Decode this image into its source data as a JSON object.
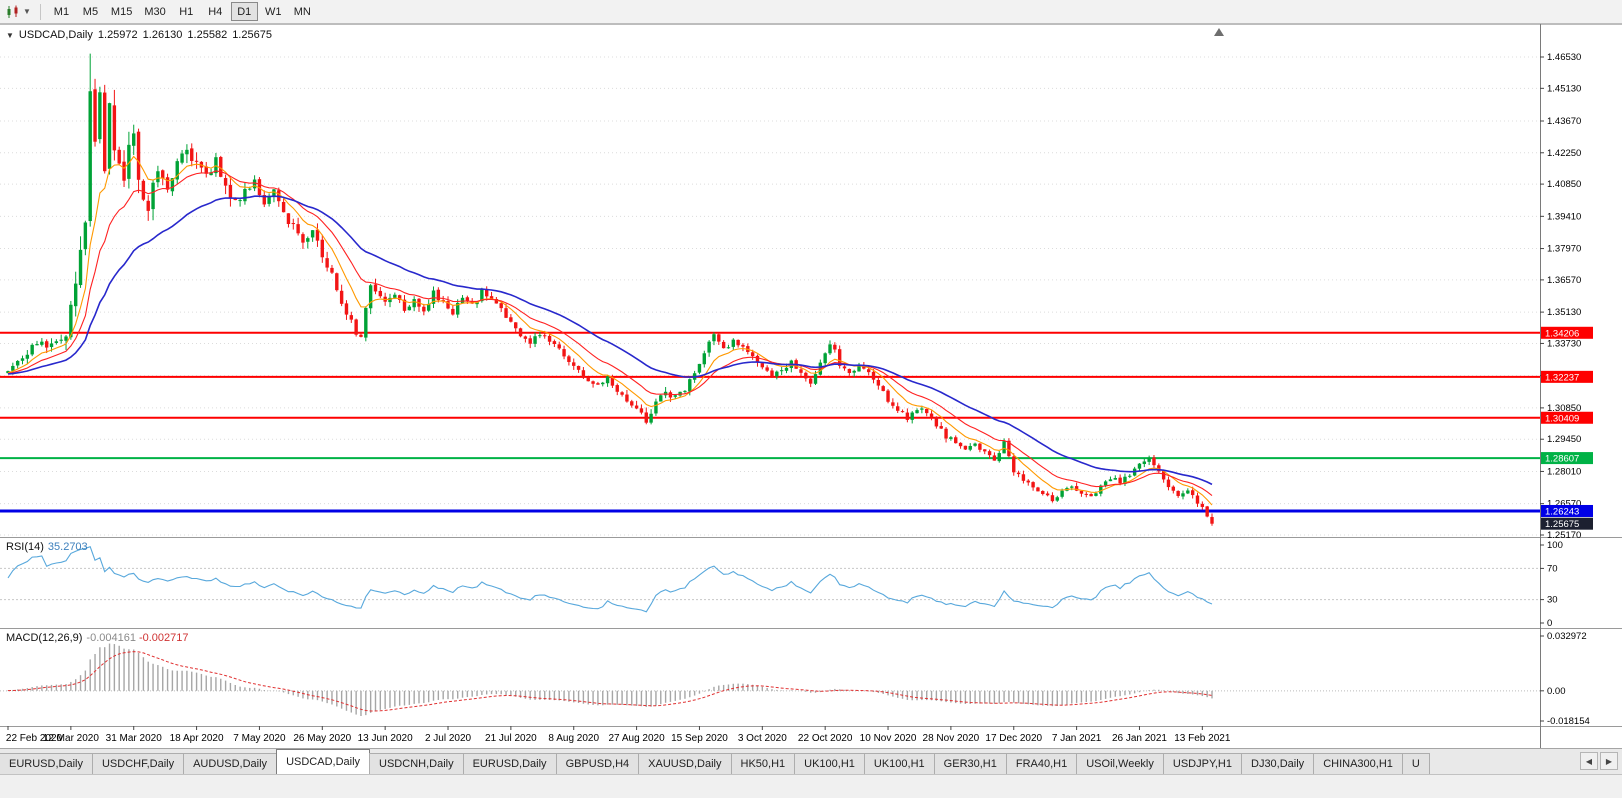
{
  "toolbar": {
    "timeframes": [
      "M1",
      "M5",
      "M15",
      "M30",
      "H1",
      "H4",
      "D1",
      "W1",
      "MN"
    ],
    "selected_timeframe": "D1"
  },
  "chart": {
    "symbol_title": "USDCAD,Daily",
    "open": "1.25972",
    "high": "1.26130",
    "low": "1.25582",
    "close": "1.25675"
  },
  "price_axis": {
    "ticks": [
      "1.46530",
      "1.45130",
      "1.43670",
      "1.42250",
      "1.40850",
      "1.39410",
      "1.37970",
      "1.36570",
      "1.35130",
      "1.33730",
      "1.32290",
      "1.30850",
      "1.29450",
      "1.28010",
      "1.26570",
      "1.25170"
    ]
  },
  "current_price_label": "1.25675",
  "date_axis": {
    "labels": [
      "22 Feb 2020",
      "12 Mar 2020",
      "31 Mar 2020",
      "18 Apr 2020",
      "7 May 2020",
      "26 May 2020",
      "13 Jun 2020",
      "2 Jul 2020",
      "21 Jul 2020",
      "8 Aug 2020",
      "27 Aug 2020",
      "15 Sep 2020",
      "3 Oct 2020",
      "22 Oct 2020",
      "10 Nov 2020",
      "28 Nov 2020",
      "17 Dec 2020",
      "7 Jan 2021",
      "26 Jan 2021",
      "13 Feb 2021"
    ]
  },
  "rsi_panel": {
    "name": "RSI(14)",
    "value": "35.2703",
    "scale": [
      {
        "label": "100",
        "value": 100
      },
      {
        "label": "70",
        "value": 70
      },
      {
        "label": "30",
        "value": 30
      },
      {
        "label": "0",
        "value": 0
      }
    ],
    "levels_dotted": [
      70,
      30
    ]
  },
  "macd_panel": {
    "name": "MACD(12,26,9)",
    "value_main": "-0.004161",
    "value_signal": "-0.002717",
    "scale": [
      {
        "label": "0.032972",
        "value": 0.032972
      },
      {
        "label": "0.00",
        "value": 0
      },
      {
        "label": "-0.018154",
        "value": -0.018154
      }
    ]
  },
  "tabs": [
    "EURUSD,Daily",
    "USDCHF,Daily",
    "AUDUSD,Daily",
    "USDCAD,Daily",
    "USDCNH,Daily",
    "EURUSD,Daily",
    "GBPUSD,H4",
    "XAUUSD,Daily",
    "HK50,H1",
    "UK100,H1",
    "UK100,H1",
    "GER30,H1",
    "FRA40,H1",
    "USOil,Weekly",
    "USDJPY,H1",
    "DJ30,Daily",
    "CHINA300,H1",
    "U"
  ],
  "active_tab_index": 3,
  "tab_scroll": {
    "left": "◀",
    "right": "▶"
  },
  "chart_data": {
    "type": "candlestick",
    "title": "USDCAD,Daily",
    "num_candles": 250,
    "colors": {
      "bull": "#00A236",
      "bear": "#F21515",
      "grid": "#DCDCDC",
      "rsi": "#58A8DC",
      "macd_hist": "#A6A6A6",
      "macd_signal": "#E03030",
      "current_bg": "#1C2030"
    },
    "horizontal_lines": [
      {
        "label": "1.34206",
        "color": "#FE0000",
        "width": 2
      },
      {
        "label": "1.32237",
        "color": "#FE0000",
        "width": 2
      },
      {
        "label": "1.30409",
        "color": "#FE0000",
        "width": 2
      },
      {
        "label": "1.28607",
        "color": "#00B246",
        "width": 2
      },
      {
        "label": "1.26243",
        "color": "#0000E6",
        "width": 3
      }
    ],
    "moving_averages": [
      {
        "name": "fast-orange",
        "period": 8,
        "color": "#FF9900",
        "width": 1.1
      },
      {
        "name": "mid-red",
        "period": 16,
        "color": "#FF2222",
        "width": 1.1
      },
      {
        "name": "slow-blue",
        "period": 34,
        "color": "#2828CC",
        "width": 1.6
      }
    ],
    "ohlc_last": {
      "open": 1.25972,
      "high": 1.2613,
      "low": 1.25582,
      "close": 1.25675
    },
    "warmup_anchors": [
      [
        -60,
        1.3225
      ],
      [
        -30,
        1.324
      ],
      [
        -10,
        1.323
      ],
      [
        -1,
        1.3245
      ]
    ],
    "close_anchors": [
      [
        0,
        1.3255
      ],
      [
        2,
        1.3305
      ],
      [
        4,
        1.333
      ],
      [
        6,
        1.3385
      ],
      [
        8,
        1.3355
      ],
      [
        10,
        1.34
      ],
      [
        12,
        1.342
      ],
      [
        13,
        1.353
      ],
      [
        14,
        1.364
      ],
      [
        15,
        1.376
      ],
      [
        16,
        1.392
      ],
      [
        17,
        1.45
      ],
      [
        18,
        1.43
      ],
      [
        19,
        1.446
      ],
      [
        20,
        1.412
      ],
      [
        21,
        1.443
      ],
      [
        22,
        1.428
      ],
      [
        23,
        1.416
      ],
      [
        24,
        1.409
      ],
      [
        25,
        1.423
      ],
      [
        26,
        1.432
      ],
      [
        27,
        1.414
      ],
      [
        28,
        1.403
      ],
      [
        29,
        1.399
      ],
      [
        30,
        1.409
      ],
      [
        31,
        1.416
      ],
      [
        33,
        1.408
      ],
      [
        35,
        1.42
      ],
      [
        37,
        1.4255
      ],
      [
        39,
        1.417
      ],
      [
        41,
        1.411
      ],
      [
        43,
        1.42
      ],
      [
        45,
        1.408
      ],
      [
        47,
        1.399
      ],
      [
        49,
        1.406
      ],
      [
        51,
        1.411
      ],
      [
        53,
        1.399
      ],
      [
        55,
        1.404
      ],
      [
        57,
        1.3955
      ],
      [
        59,
        1.39
      ],
      [
        61,
        1.383
      ],
      [
        63,
        1.389
      ],
      [
        65,
        1.376
      ],
      [
        67,
        1.368
      ],
      [
        69,
        1.356
      ],
      [
        71,
        1.348
      ],
      [
        72,
        1.343
      ],
      [
        73,
        1.339
      ],
      [
        74,
        1.352
      ],
      [
        75,
        1.364
      ],
      [
        76,
        1.361
      ],
      [
        78,
        1.356
      ],
      [
        80,
        1.3605
      ],
      [
        82,
        1.353
      ],
      [
        84,
        1.3575
      ],
      [
        86,
        1.352
      ],
      [
        88,
        1.3595
      ],
      [
        90,
        1.355
      ],
      [
        92,
        1.3515
      ],
      [
        94,
        1.3575
      ],
      [
        96,
        1.354
      ],
      [
        98,
        1.3605
      ],
      [
        100,
        1.357
      ],
      [
        102,
        1.353
      ],
      [
        104,
        1.3465
      ],
      [
        106,
        1.3405
      ],
      [
        108,
        1.3375
      ],
      [
        110,
        1.3415
      ],
      [
        112,
        1.339
      ],
      [
        114,
        1.335
      ],
      [
        116,
        1.3295
      ],
      [
        118,
        1.325
      ],
      [
        120,
        1.3205
      ],
      [
        122,
        1.318
      ],
      [
        124,
        1.323
      ],
      [
        126,
        1.3165
      ],
      [
        128,
        1.3125
      ],
      [
        130,
        1.309
      ],
      [
        131,
        1.3055
      ],
      [
        132,
        1.3025
      ],
      [
        133,
        1.307
      ],
      [
        134,
        1.3115
      ],
      [
        136,
        1.3155
      ],
      [
        138,
        1.313
      ],
      [
        140,
        1.3175
      ],
      [
        142,
        1.3235
      ],
      [
        144,
        1.332
      ],
      [
        145,
        1.3385
      ],
      [
        146,
        1.3405
      ],
      [
        147,
        1.3375
      ],
      [
        148,
        1.335
      ],
      [
        150,
        1.3385
      ],
      [
        152,
        1.3355
      ],
      [
        154,
        1.331
      ],
      [
        156,
        1.327
      ],
      [
        158,
        1.3215
      ],
      [
        160,
        1.3255
      ],
      [
        162,
        1.3295
      ],
      [
        164,
        1.325
      ],
      [
        166,
        1.3185
      ],
      [
        168,
        1.3275
      ],
      [
        169,
        1.3325
      ],
      [
        170,
        1.3375
      ],
      [
        171,
        1.3335
      ],
      [
        172,
        1.328
      ],
      [
        174,
        1.3235
      ],
      [
        176,
        1.3275
      ],
      [
        178,
        1.324
      ],
      [
        180,
        1.318
      ],
      [
        182,
        1.312
      ],
      [
        184,
        1.308
      ],
      [
        186,
        1.304
      ],
      [
        188,
        1.3085
      ],
      [
        190,
        1.3055
      ],
      [
        192,
        1.301
      ],
      [
        194,
        1.296
      ],
      [
        196,
        1.2925
      ],
      [
        198,
        1.289
      ],
      [
        200,
        1.293
      ],
      [
        202,
        1.288
      ],
      [
        204,
        1.2855
      ],
      [
        205,
        1.2885
      ],
      [
        206,
        1.2945
      ],
      [
        207,
        1.287
      ],
      [
        208,
        1.2805
      ],
      [
        210,
        1.2765
      ],
      [
        212,
        1.2735
      ],
      [
        214,
        1.2705
      ],
      [
        216,
        1.267
      ],
      [
        218,
        1.2705
      ],
      [
        220,
        1.273
      ],
      [
        222,
        1.27
      ],
      [
        224,
        1.2685
      ],
      [
        226,
        1.274
      ],
      [
        228,
        1.2775
      ],
      [
        230,
        1.2755
      ],
      [
        232,
        1.279
      ],
      [
        234,
        1.2835
      ],
      [
        236,
        1.286
      ],
      [
        238,
        1.2795
      ],
      [
        240,
        1.2735
      ],
      [
        242,
        1.2695
      ],
      [
        244,
        1.2715
      ],
      [
        246,
        1.2665
      ],
      [
        248,
        1.2605
      ],
      [
        249,
        1.25675
      ]
    ],
    "volatility_anchors": [
      [
        -60,
        0.0022
      ],
      [
        0,
        0.003
      ],
      [
        10,
        0.0045
      ],
      [
        14,
        0.0095
      ],
      [
        18,
        0.012
      ],
      [
        24,
        0.0105
      ],
      [
        30,
        0.0085
      ],
      [
        38,
        0.0065
      ],
      [
        50,
        0.0055
      ],
      [
        65,
        0.0048
      ],
      [
        80,
        0.0038
      ],
      [
        100,
        0.0032
      ],
      [
        120,
        0.003
      ],
      [
        132,
        0.0036
      ],
      [
        145,
        0.0032
      ],
      [
        160,
        0.003
      ],
      [
        175,
        0.003
      ],
      [
        190,
        0.003
      ],
      [
        205,
        0.0028
      ],
      [
        220,
        0.0024
      ],
      [
        235,
        0.0022
      ],
      [
        249,
        0.0026
      ]
    ],
    "forced_candles": {
      "17": [
        1.392,
        1.4668,
        1.3895,
        1.45
      ],
      "249": [
        1.25972,
        1.2613,
        1.25582,
        1.25675
      ]
    }
  }
}
